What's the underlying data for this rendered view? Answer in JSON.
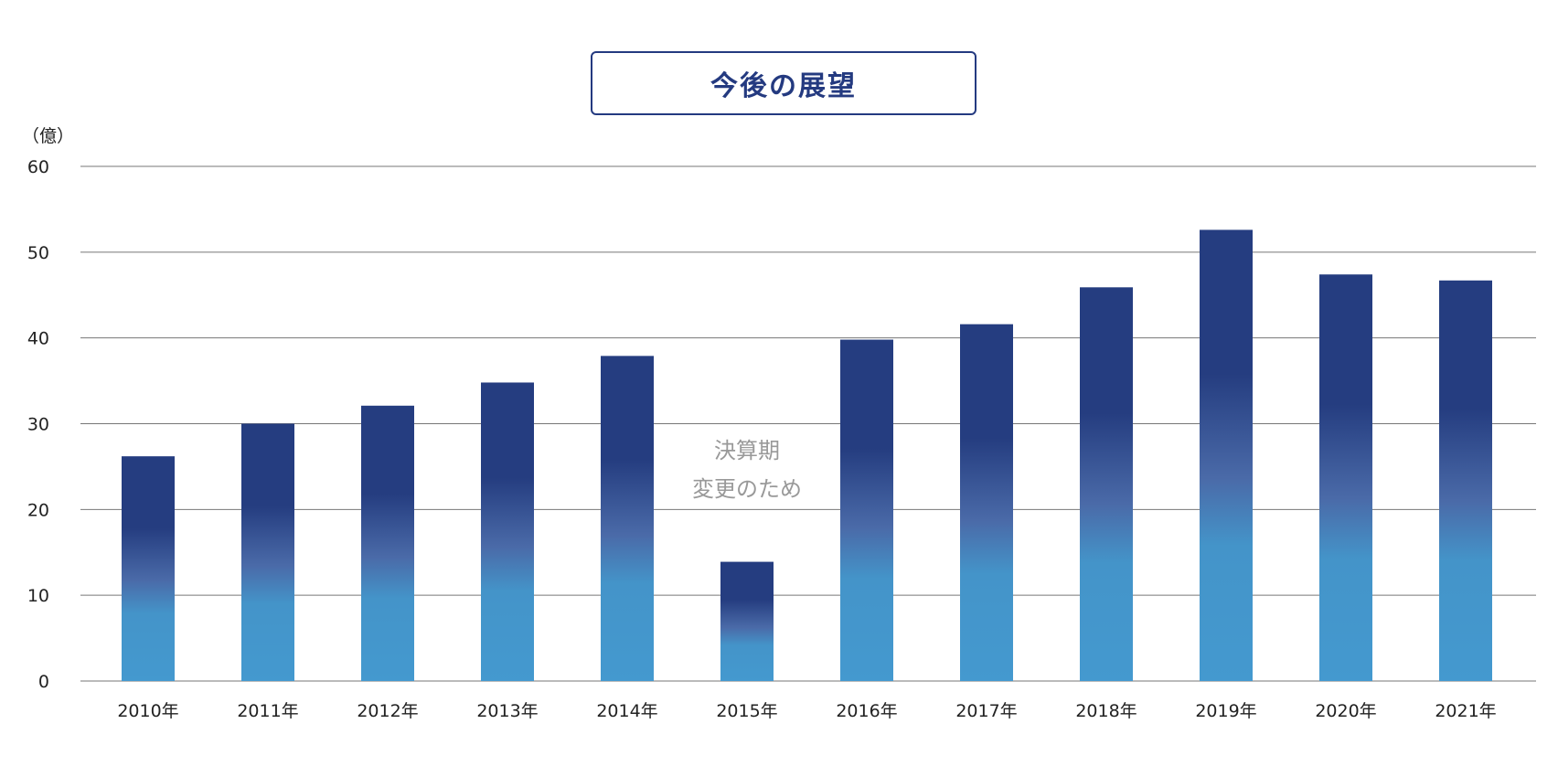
{
  "chart_data": {
    "type": "bar",
    "title": "今後の展望",
    "ylabel": "（億）",
    "xlabel": "",
    "categories": [
      "2010年",
      "2011年",
      "2012年",
      "2013年",
      "2014年",
      "2015年",
      "2016年",
      "2017年",
      "2018年",
      "2019年",
      "2020年",
      "2021年"
    ],
    "values": [
      26.2,
      30.0,
      32.1,
      34.8,
      37.9,
      13.9,
      39.8,
      41.6,
      45.9,
      52.6,
      47.4,
      46.7
    ],
    "ylim": [
      0,
      60
    ],
    "yticks": [
      "0",
      "10",
      "20",
      "30",
      "40",
      "50",
      "60"
    ],
    "grid": true,
    "colors": {
      "bar_top": "#253d80",
      "bar_mid": "#4a6aa8",
      "bar_bottom": "#4499cf",
      "grid": "#777777",
      "title": "#243a80"
    },
    "annotation": {
      "lines": [
        "決算期",
        "変更のため"
      ],
      "category": "2015年"
    }
  }
}
